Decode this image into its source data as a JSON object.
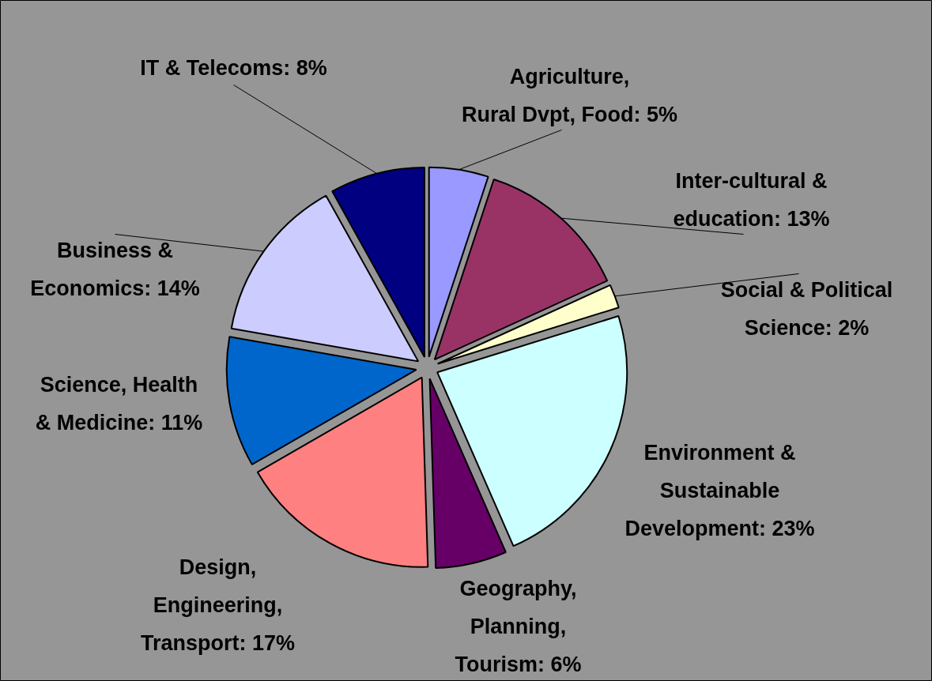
{
  "chart_data": {
    "type": "pie",
    "categories": [
      "Agriculture,\nRural Dvpt, Food",
      "Inter-cultural &\neducation",
      "Social & Political\nScience",
      "Environment &\nSustainable\nDevelopment",
      "Geography,\nPlanning,\nTourism",
      "Design,\nEngineering,\nTransport",
      "Science, Health\n& Medicine",
      "Business &\nEconomics",
      "IT & Telecoms"
    ],
    "values": [
      5,
      13,
      2,
      23,
      6,
      17,
      11,
      14,
      8
    ],
    "value_labels": [
      "5%",
      "13%",
      "2%",
      "23%",
      "6%",
      "17%",
      "11%",
      "14%",
      "8%"
    ],
    "colors": [
      "#9999ff",
      "#993366",
      "#ffffcc",
      "#ccffff",
      "#660066",
      "#ff8080",
      "#0066cc",
      "#ccccff",
      "#000080"
    ]
  }
}
